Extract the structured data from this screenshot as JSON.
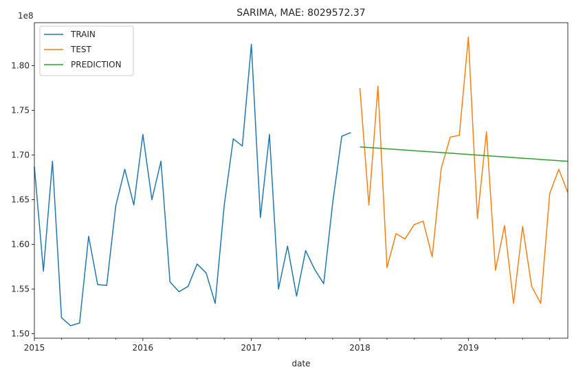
{
  "chart_data": {
    "type": "line",
    "title": "SARIMA, MAE: 8029572.37",
    "xlabel": "date",
    "ylabel": "",
    "y_offset_label": "1e8",
    "ylim": [
      1.495,
      1.848
    ],
    "xlim": [
      "2015-01",
      "2019-12"
    ],
    "x_ticks": [
      {
        "date": "2015-01",
        "label": "2015"
      },
      {
        "date": "2016-01",
        "label": "2016"
      },
      {
        "date": "2017-01",
        "label": "2017"
      },
      {
        "date": "2018-01",
        "label": "2018"
      },
      {
        "date": "2019-01",
        "label": "2019"
      }
    ],
    "y_ticks": [
      {
        "value": 1.5,
        "label": "1.50"
      },
      {
        "value": 1.55,
        "label": "1.55"
      },
      {
        "value": 1.6,
        "label": "1.60"
      },
      {
        "value": 1.65,
        "label": "1.65"
      },
      {
        "value": 1.7,
        "label": "1.70"
      },
      {
        "value": 1.75,
        "label": "1.75"
      },
      {
        "value": 1.8,
        "label": "1.80"
      }
    ],
    "grid": false,
    "legend_position": "top-left",
    "series": [
      {
        "name": "TRAIN",
        "color": "#1f77b4",
        "start": "2015-01",
        "values": [
          1.687,
          1.57,
          1.693,
          1.518,
          1.509,
          1.512,
          1.609,
          1.555,
          1.554,
          1.643,
          1.684,
          1.644,
          1.723,
          1.65,
          1.693,
          1.558,
          1.547,
          1.553,
          1.578,
          1.568,
          1.534,
          1.644,
          1.718,
          1.71,
          1.824,
          1.63,
          1.723,
          1.55,
          1.598,
          1.542,
          1.593,
          1.572,
          1.556,
          1.647,
          1.721,
          1.725
        ]
      },
      {
        "name": "TEST",
        "color": "#ff7f0e",
        "start": "2018-01",
        "values": [
          1.775,
          1.644,
          1.777,
          1.574,
          1.612,
          1.606,
          1.622,
          1.626,
          1.586,
          1.685,
          1.72,
          1.722,
          1.832,
          1.629,
          1.726,
          1.571,
          1.621,
          1.534,
          1.62,
          1.553,
          1.534,
          1.657,
          1.684,
          1.658
        ]
      },
      {
        "name": "PREDICTION",
        "color": "#2ca02c",
        "start": "2018-01",
        "values": [
          1.709,
          1.7083,
          1.7076,
          1.7069,
          1.7062,
          1.7055,
          1.7048,
          1.7041,
          1.7034,
          1.7027,
          1.702,
          1.7013,
          1.7006,
          1.6999,
          1.6992,
          1.6985,
          1.6978,
          1.6971,
          1.6964,
          1.6957,
          1.695,
          1.6943,
          1.6936,
          1.6929
        ]
      }
    ]
  }
}
